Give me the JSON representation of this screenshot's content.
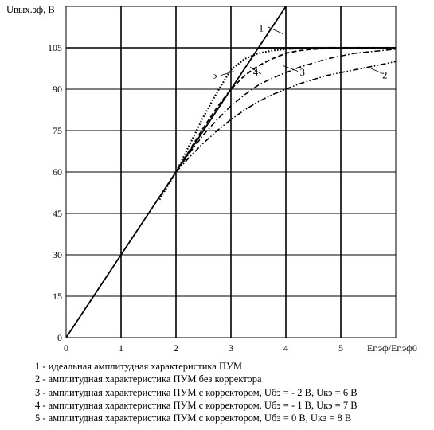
{
  "chart_data": {
    "type": "line",
    "ylabel": "Uвых.эф, В",
    "xlabel": "Ег.эф/Ег.эф0",
    "xlim": [
      0,
      6
    ],
    "ylim": [
      0,
      120
    ],
    "x_ticks": [
      0,
      1,
      2,
      3,
      4,
      5
    ],
    "y_ticks": [
      0,
      15,
      30,
      45,
      60,
      75,
      90,
      105
    ],
    "grid": true,
    "series": [
      {
        "name": "1",
        "style": "solid",
        "x": [
          0,
          4
        ],
        "y": [
          0,
          120
        ]
      },
      {
        "name": "2",
        "style": "dash-dot-dot",
        "x": [
          2.0,
          2.25,
          2.5,
          2.75,
          3.0,
          3.25,
          3.5,
          3.75,
          4.0,
          4.25,
          4.5,
          4.75,
          5.0,
          5.25,
          5.5,
          5.75,
          6.0
        ],
        "y": [
          60,
          65.5,
          70.5,
          75,
          79,
          82.5,
          85.5,
          88,
          90,
          92,
          93.5,
          95,
          96,
          97,
          98,
          99,
          100
        ]
      },
      {
        "name": "3",
        "style": "dash-dot",
        "x": [
          2.0,
          2.25,
          2.5,
          2.75,
          3.0,
          3.25,
          3.5,
          3.75,
          4.0,
          4.25,
          4.5,
          4.75,
          5.0,
          5.25,
          5.5,
          5.75,
          6.0
        ],
        "y": [
          60,
          67,
          73.5,
          79,
          84,
          88,
          91.5,
          94,
          96,
          98,
          99.5,
          101,
          102,
          103,
          103.5,
          104,
          104.5
        ]
      },
      {
        "name": "4",
        "style": "dash",
        "x": [
          2.0,
          2.25,
          2.5,
          2.75,
          3.0,
          3.25,
          3.5,
          3.75,
          4.0,
          4.25,
          4.5,
          5.0,
          5.5,
          6.0
        ],
        "y": [
          60,
          68,
          76,
          83.5,
          90,
          95,
          98.5,
          101,
          103,
          104,
          104.5,
          105,
          105,
          105
        ]
      },
      {
        "name": "5",
        "style": "dotted",
        "x": [
          1.7,
          2.0,
          2.25,
          2.5,
          2.75,
          3.0,
          3.25,
          3.5,
          3.75,
          4.0,
          4.25,
          4.5,
          5.0,
          5.5,
          6.0
        ],
        "y": [
          50,
          60,
          70,
          80,
          89,
          97,
          101,
          103,
          104,
          104.5,
          104.8,
          105,
          105,
          105,
          105
        ]
      },
      {
        "name": "1",
        "style": "solid",
        "x": [
          3.5,
          3.8,
          4.5,
          5.0,
          6.0
        ],
        "y": [
          105,
          105,
          105,
          105,
          105
        ]
      }
    ],
    "curve_labels": [
      {
        "text": "1",
        "x": 3.55,
        "y": 112
      },
      {
        "text": "5",
        "x": 2.7,
        "y": 95
      },
      {
        "text": "4",
        "x": 3.45,
        "y": 96
      },
      {
        "text": "3",
        "x": 4.3,
        "y": 96
      },
      {
        "text": "2",
        "x": 5.8,
        "y": 95
      }
    ],
    "legend": [
      "1 - идеальная амплитудная характеристика ПУМ",
      "2 - амплитудная характеристика ПУМ без корректора",
      "3 - амплитудная характеристика ПУМ с корректором, Uбэ = - 2 В, Uкэ = 6 В",
      "4 - амплитудная характеристика ПУМ с корректором, Uбэ = - 1 В, Uкэ = 7 В",
      "5 - амплитудная характеристика ПУМ с корректором, Uбэ = 0 В, Uкэ = 8 В"
    ]
  }
}
